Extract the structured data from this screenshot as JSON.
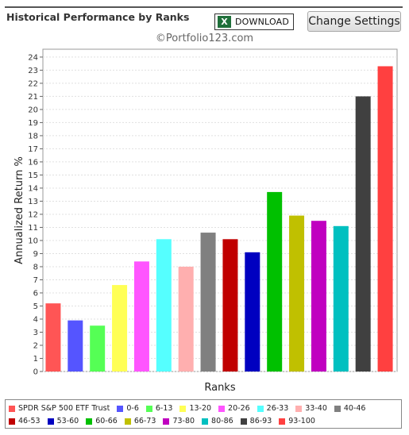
{
  "header": {
    "title": "Historical Performance by Ranks",
    "download_label": "DOWNLOAD",
    "download_icon": "excel-icon",
    "settings_label": "Change Settings",
    "watermark": "©Portfolio123.com"
  },
  "chart_data": {
    "type": "bar",
    "xlabel": "Ranks",
    "ylabel": "Annualized Return %",
    "ylim": [
      0,
      24.6
    ],
    "yticks": [
      0,
      1,
      2,
      3,
      4,
      5,
      6,
      7,
      8,
      9,
      10,
      11,
      12,
      13,
      14,
      15,
      16,
      17,
      18,
      19,
      20,
      21,
      22,
      23,
      24
    ],
    "grid": true,
    "legend_position": "bottom",
    "categories": [
      "SPDR S&P 500 ETF Trust",
      "0-6",
      "6-13",
      "13-20",
      "20-26",
      "26-33",
      "33-40",
      "40-46",
      "46-53",
      "53-60",
      "60-66",
      "66-73",
      "73-80",
      "80-86",
      "86-93",
      "93-100"
    ],
    "values": [
      5.2,
      3.9,
      3.5,
      6.6,
      8.4,
      10.1,
      8.0,
      10.6,
      10.1,
      9.1,
      13.7,
      11.9,
      11.5,
      11.1,
      21.0,
      23.3
    ],
    "colors": [
      "#ff5555",
      "#5555ff",
      "#55ff55",
      "#ffff55",
      "#ff55ff",
      "#55ffff",
      "#ffafaf",
      "#808080",
      "#c00000",
      "#0000c0",
      "#00c000",
      "#c0c000",
      "#c000c0",
      "#00c0c0",
      "#404040",
      "#ff4040"
    ]
  }
}
